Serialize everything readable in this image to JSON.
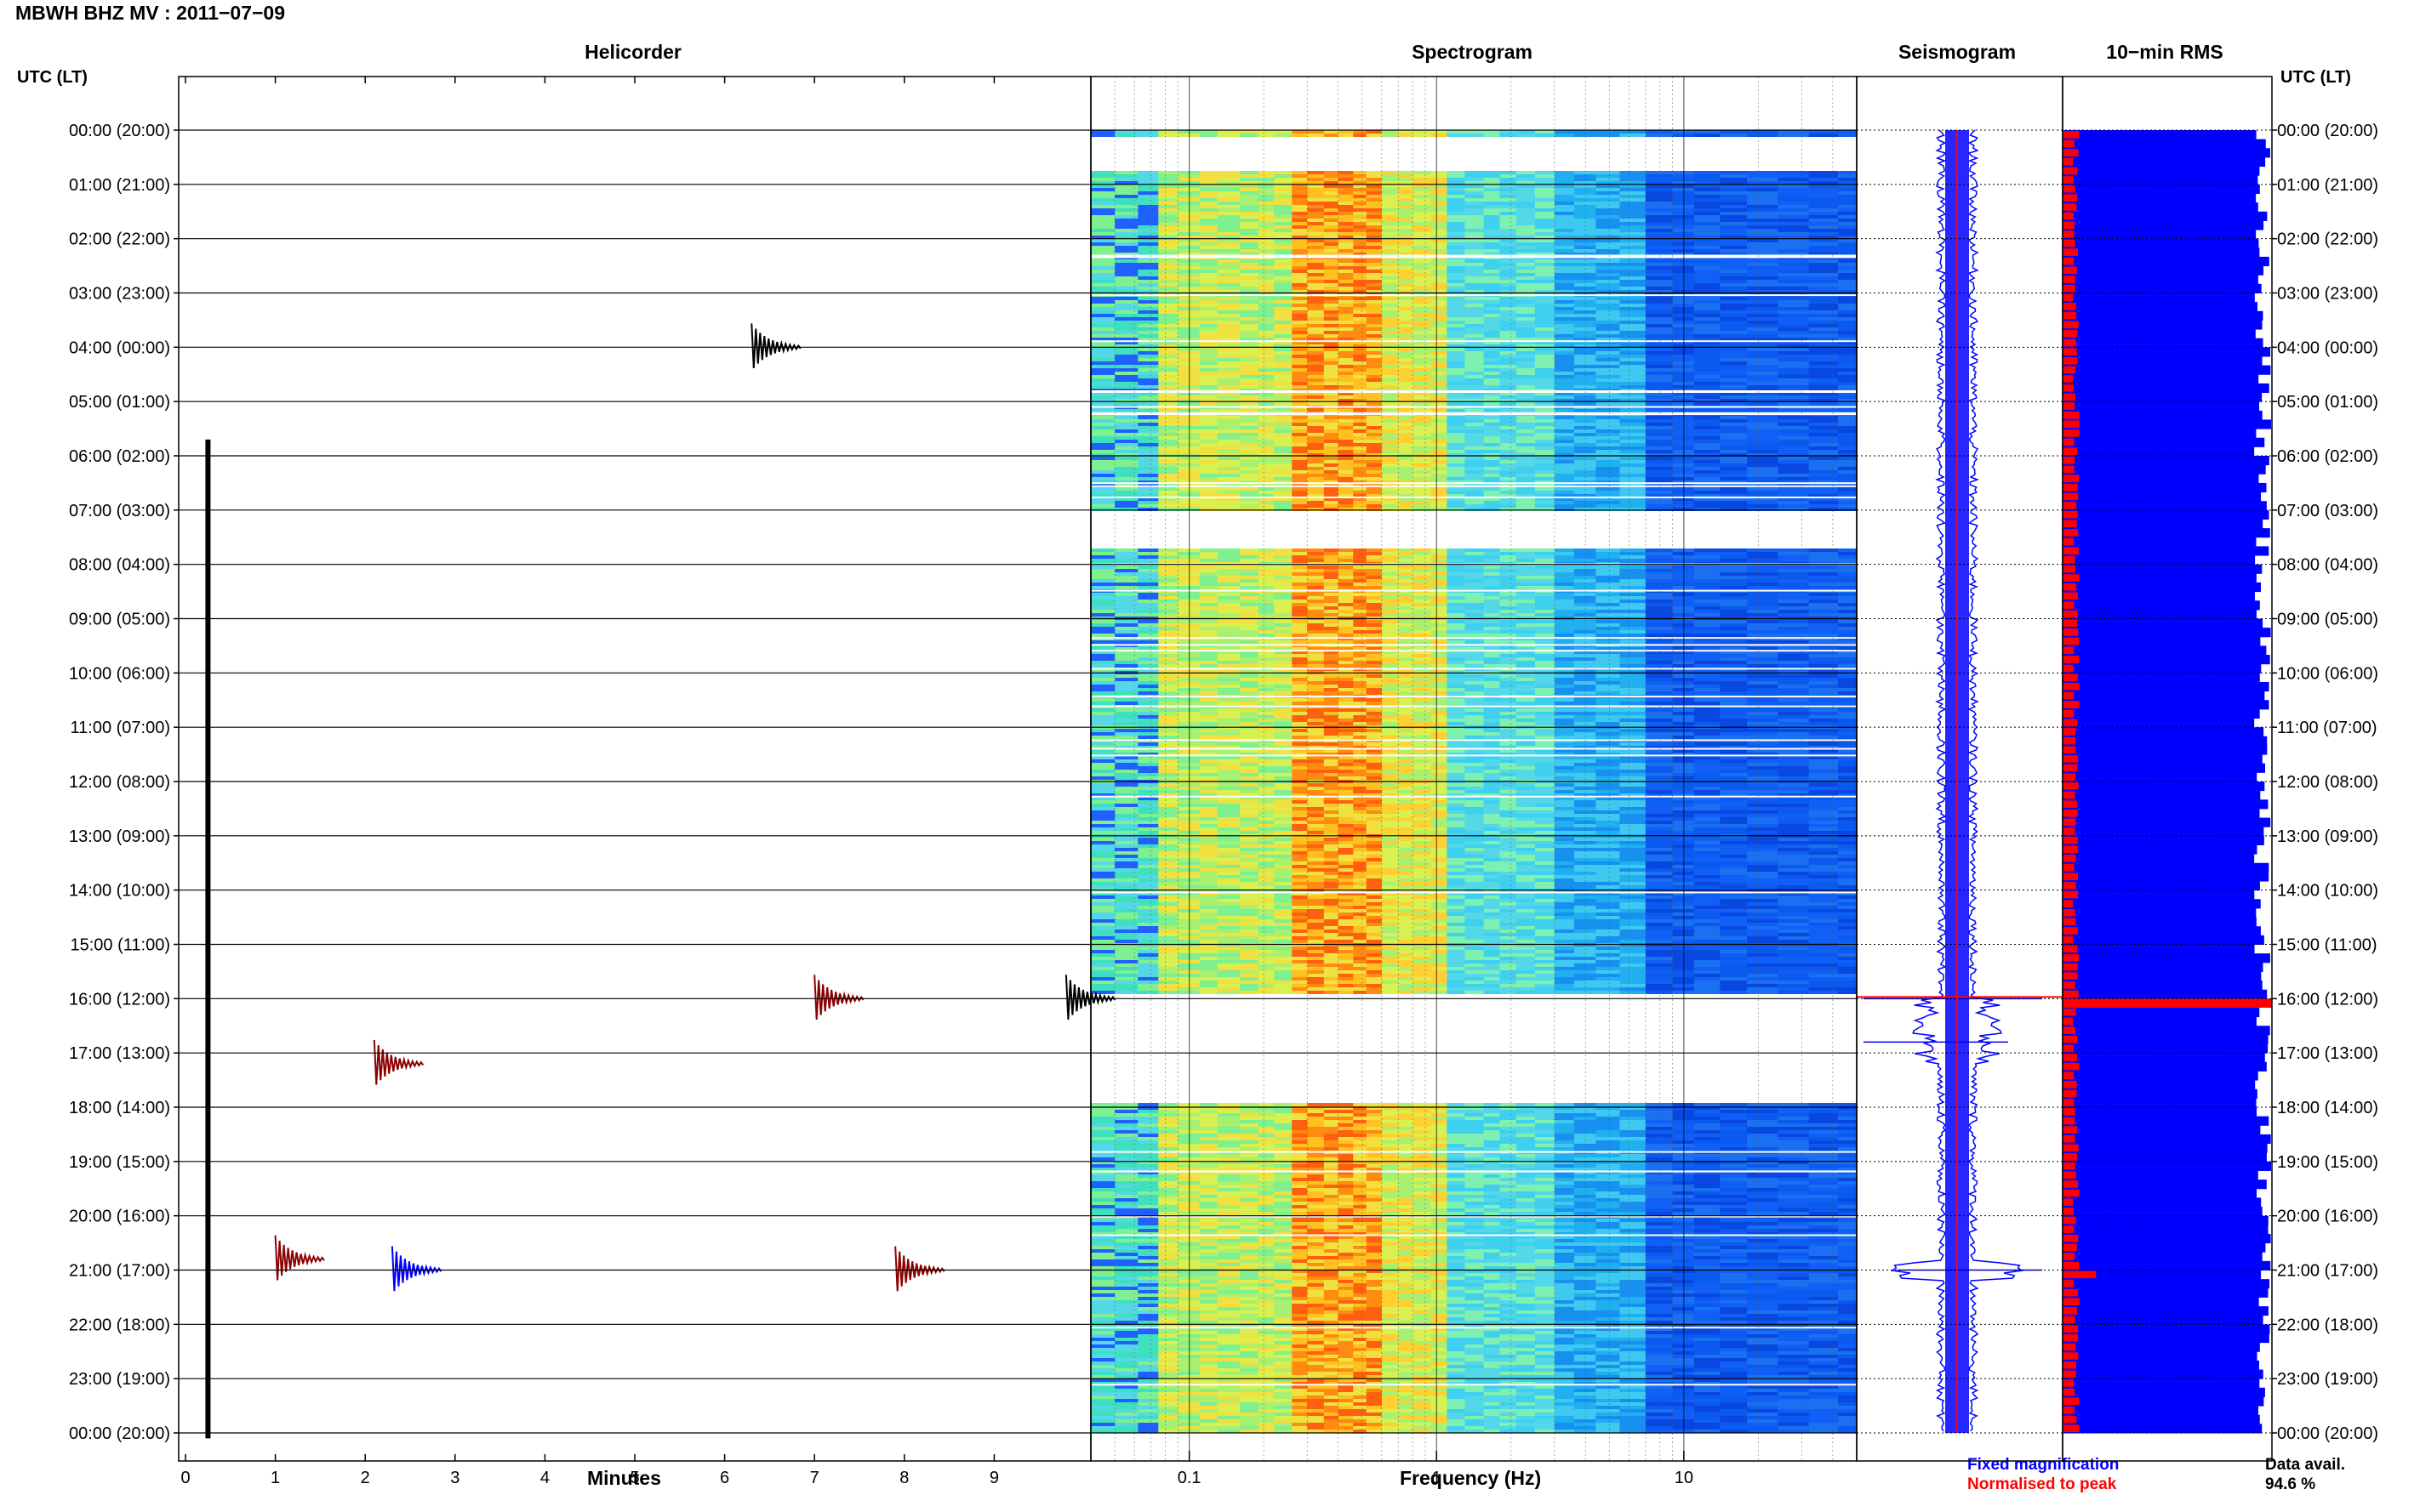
{
  "header": {
    "title": "MBWH BHZ MV : 2011−07−09"
  },
  "panels": {
    "helicorder": "Helicorder",
    "spectrogram": "Spectrogram",
    "seismogram": "Seismogram",
    "rms": "10−min RMS"
  },
  "axis": {
    "utc_left": "UTC (LT)",
    "utc_right": "UTC (LT)",
    "minutes_label": "Minutes",
    "frequency_label": "Frequency (Hz)"
  },
  "legend": {
    "fixed": "Fixed magnification",
    "normalised": "Normalised to peak",
    "fixed_color": "#0000ff",
    "normalised_color": "#ff0000"
  },
  "data_avail": {
    "label": "Data avail.",
    "value": "94.6 %"
  },
  "chart_data": {
    "type": "heatmap",
    "time_labels": [
      "00:00 (20:00)",
      "01:00 (21:00)",
      "02:00 (22:00)",
      "03:00 (23:00)",
      "04:00 (00:00)",
      "05:00 (01:00)",
      "06:00 (02:00)",
      "07:00 (03:00)",
      "08:00 (04:00)",
      "09:00 (05:00)",
      "10:00 (06:00)",
      "11:00 (07:00)",
      "12:00 (08:00)",
      "13:00 (09:00)",
      "14:00 (10:00)",
      "15:00 (11:00)",
      "16:00 (12:00)",
      "17:00 (13:00)",
      "18:00 (14:00)",
      "19:00 (15:00)",
      "20:00 (16:00)",
      "21:00 (17:00)",
      "22:00 (18:00)",
      "23:00 (19:00)",
      "00:00 (20:00)"
    ],
    "minutes_ticks": [
      "0",
      "1",
      "2",
      "3",
      "4",
      "5",
      "6",
      "7",
      "8",
      "9"
    ],
    "minutes_range": [
      0,
      10
    ],
    "frequency_ticks": [
      "0.1",
      "1",
      "10"
    ],
    "frequency_range": [
      0.04,
      50
    ],
    "frequency_scale": "log",
    "trace_colors": [
      "#000000",
      "#8b0000",
      "#0000ff",
      "#008000"
    ],
    "spectrogram_gaps_hours": [
      [
        0.1,
        0.75
      ],
      [
        7.0,
        7.7
      ],
      [
        15.9,
        17.9
      ]
    ],
    "helicorder_noisy_hours": [
      [
        0.0,
        1.0
      ],
      [
        7.0,
        8.0
      ],
      [
        16.0,
        18.0
      ]
    ],
    "events": [
      {
        "hour": 4.0,
        "minute": 6.3,
        "color": "#000000"
      },
      {
        "hour": 16.0,
        "minute": 7.0,
        "color": "#8b0000"
      },
      {
        "hour": 16.0,
        "minute": 9.8,
        "color": "#000000"
      },
      {
        "hour": 17.2,
        "minute": 2.1,
        "color": "#8b0000"
      },
      {
        "hour": 20.8,
        "minute": 1.0,
        "color": "#8b0000"
      },
      {
        "hour": 21.0,
        "minute": 2.3,
        "color": "#0000ff"
      },
      {
        "hour": 21.0,
        "minute": 7.9,
        "color": "#8b0000"
      }
    ],
    "rms_spike_hours": [
      16.0,
      21.0
    ]
  }
}
